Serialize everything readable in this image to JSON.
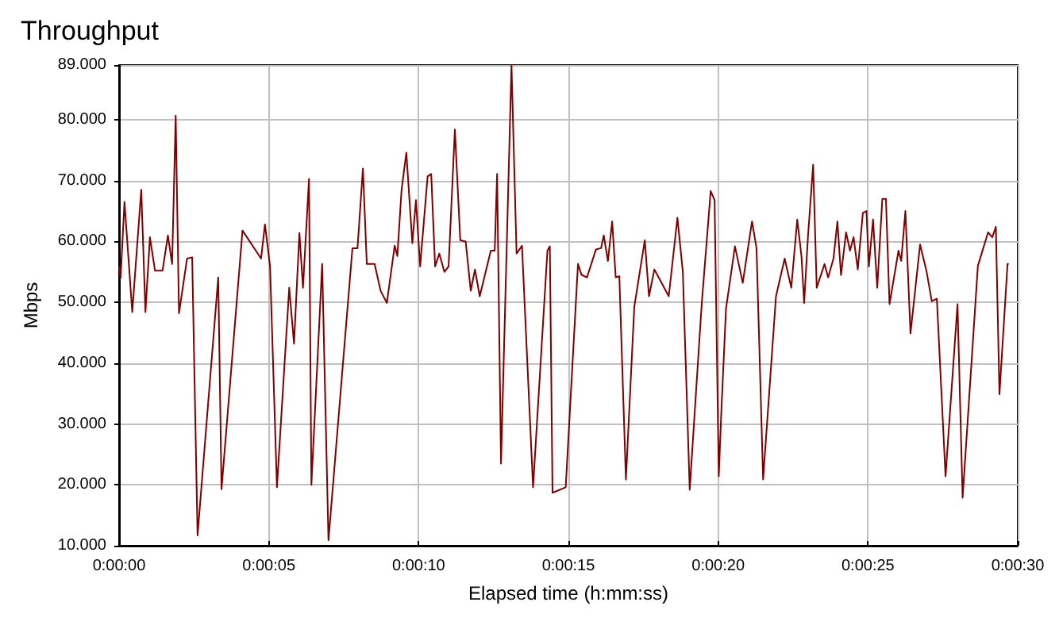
{
  "chart_data": {
    "type": "line",
    "title": "Throughput",
    "xlabel": "Elapsed time (h:mm:ss)",
    "ylabel": "Mbps",
    "grid": true,
    "marker": "none",
    "line_style": "solid",
    "xlim": [
      0,
      30
    ],
    "ylim": [
      10,
      89
    ],
    "xticks": [
      {
        "value": 0,
        "label": "0:00:00"
      },
      {
        "value": 5,
        "label": "0:00:05"
      },
      {
        "value": 10,
        "label": "0:00:10"
      },
      {
        "value": 15,
        "label": "0:00:15"
      },
      {
        "value": 20,
        "label": "0:00:20"
      },
      {
        "value": 25,
        "label": "0:00:25"
      },
      {
        "value": 30,
        "label": "0:00:30"
      }
    ],
    "yticks": [
      {
        "value": 10,
        "label": "10.000"
      },
      {
        "value": 20,
        "label": "20.000"
      },
      {
        "value": 30,
        "label": "30.000"
      },
      {
        "value": 40,
        "label": "40.000"
      },
      {
        "value": 50,
        "label": "50.000"
      },
      {
        "value": 60,
        "label": "60.000"
      },
      {
        "value": 70,
        "label": "70.000"
      },
      {
        "value": 80,
        "label": "80.000"
      },
      {
        "value": 89,
        "label": "89.000"
      }
    ],
    "series": [
      {
        "color": "#800000",
        "x": [
          0,
          0.05,
          0.18,
          0.44,
          0.74,
          0.88,
          1.03,
          1.2,
          1.45,
          1.63,
          1.77,
          1.89,
          2.0,
          2.27,
          2.44,
          2.62,
          3.31,
          3.42,
          4.12,
          4.74,
          4.87,
          5.04,
          5.27,
          5.68,
          5.84,
          6.02,
          6.14,
          6.34,
          6.42,
          6.78,
          6.99,
          7.79,
          7.96,
          8.14,
          8.27,
          8.53,
          8.73,
          8.94,
          9.2,
          9.29,
          9.43,
          9.59,
          9.79,
          9.91,
          10.05,
          10.3,
          10.42,
          10.55,
          10.69,
          10.86,
          11.0,
          11.21,
          11.39,
          11.57,
          11.74,
          11.88,
          12.04,
          12.41,
          12.54,
          12.62,
          12.75,
          13.1,
          13.27,
          13.45,
          13.82,
          14.3,
          14.38,
          14.47,
          14.91,
          15.32,
          15.44,
          15.62,
          15.92,
          16.09,
          16.18,
          16.32,
          16.46,
          16.58,
          16.7,
          16.92,
          17.2,
          17.55,
          17.69,
          17.87,
          18.35,
          18.64,
          18.82,
          19.05,
          19.45,
          19.75,
          19.88,
          20.02,
          20.1,
          20.26,
          20.56,
          20.82,
          21.13,
          21.28,
          21.5,
          21.93,
          22.22,
          22.44,
          22.64,
          22.78,
          22.87,
          23.0,
          23.17,
          23.29,
          23.55,
          23.67,
          23.85,
          23.98,
          24.1,
          24.27,
          24.4,
          24.52,
          24.66,
          24.83,
          24.95,
          25.03,
          25.17,
          25.31,
          25.48,
          25.6,
          25.72,
          26.02,
          26.11,
          26.25,
          26.42,
          26.74,
          26.96,
          27.13,
          27.3,
          27.59,
          27.99,
          28.16,
          28.67,
          29.01,
          29.15,
          29.27,
          29.39,
          29.66,
          29.7
        ],
        "values": [
          55.9,
          54,
          66.5,
          48.4,
          68.5,
          48.4,
          60.7,
          55.2,
          55.2,
          61,
          56.3,
          80.7,
          48.2,
          57.2,
          57.4,
          11.7,
          54.1,
          19.3,
          61.8,
          57.2,
          62.8,
          55.9,
          19.6,
          52.4,
          43.2,
          61.4,
          52.4,
          70.3,
          20,
          56.3,
          10.9,
          58.9,
          58.9,
          72,
          56.3,
          56.3,
          51.9,
          49.9,
          59.3,
          57.6,
          68.5,
          74.6,
          59.7,
          66.8,
          55.9,
          70.7,
          71.1,
          55.9,
          58,
          55,
          55.9,
          78.4,
          60.2,
          60,
          51.9,
          55.4,
          51,
          58.5,
          58.5,
          71.1,
          23.5,
          89,
          58,
          59.3,
          19.6,
          58.5,
          59.2,
          18.7,
          19.6,
          56.3,
          54.5,
          54.1,
          58.7,
          58.9,
          61,
          56.8,
          63.3,
          54.1,
          54.3,
          20.9,
          49.3,
          60.2,
          51,
          55.4,
          51,
          63.9,
          55,
          19.2,
          49.7,
          68.3,
          66.8,
          21.4,
          31.4,
          48.9,
          59.2,
          53.2,
          63.3,
          58.9,
          20.9,
          51,
          57.2,
          52.4,
          63.6,
          57.6,
          49.9,
          61,
          72.6,
          52.4,
          56.3,
          54.1,
          57.2,
          63.3,
          54.5,
          61.5,
          58.5,
          60.7,
          55.4,
          64.7,
          65,
          55.9,
          63.6,
          52.4,
          67,
          67,
          49.7,
          58.5,
          56.8,
          65,
          44.9,
          59.5,
          55,
          50.2,
          50.6,
          21.4,
          49.7,
          17.9,
          56,
          61.5,
          60.7,
          62.4,
          34.9,
          56.3,
          56.3
        ]
      }
    ]
  }
}
